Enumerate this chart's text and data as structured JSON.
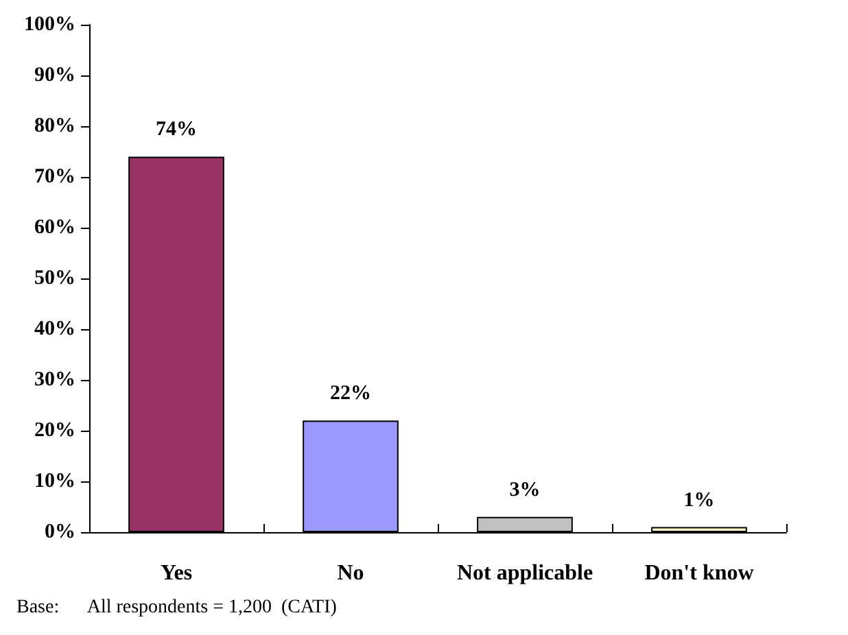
{
  "chart_data": {
    "type": "bar",
    "categories": [
      "Yes",
      "No",
      "Not applicable",
      "Don't know"
    ],
    "values": [
      74,
      22,
      3,
      1
    ],
    "colors": [
      "#993366",
      "#9999ff",
      "#c0c0c0",
      "#ffffcc"
    ],
    "value_labels": [
      "74%",
      "22%",
      "3%",
      "1%"
    ],
    "ylim": [
      0,
      100
    ],
    "yticks": [
      {
        "value": 0,
        "label": "0%"
      },
      {
        "value": 10,
        "label": "10%"
      },
      {
        "value": 20,
        "label": "20%"
      },
      {
        "value": 30,
        "label": "30%"
      },
      {
        "value": 40,
        "label": "40%"
      },
      {
        "value": 50,
        "label": "50%"
      },
      {
        "value": 60,
        "label": "60%"
      },
      {
        "value": 70,
        "label": "70%"
      },
      {
        "value": 80,
        "label": "80%"
      },
      {
        "value": 90,
        "label": "90%"
      },
      {
        "value": 100,
        "label": "100%"
      }
    ],
    "grid": false,
    "annotations": [
      "Base:      All respondents = 1,200  (CATI)"
    ]
  }
}
